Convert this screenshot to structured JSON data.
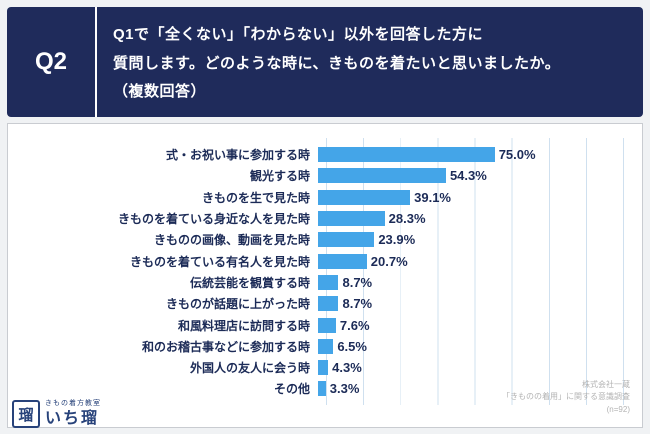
{
  "header": {
    "q_label": "Q2",
    "line1": "Q1で「全くない」「わからない」以外を回答した方に",
    "line2": "質問します。どのような時に、きものを着たいと思いましたか。",
    "line3": "（複数回答）"
  },
  "chart_data": {
    "type": "bar",
    "orientation": "horizontal",
    "title": "",
    "categories": [
      "式・お祝い事に参加する時",
      "観光する時",
      "きものを生で見た時",
      "きものを着ている身近な人を見た時",
      "きものの画像、動画を見た時",
      "きものを着ている有名人を見た時",
      "伝統芸能を観賞する時",
      "きものが話題に上がった時",
      "和風料理店に訪問する時",
      "和のお稽古事などに参加する時",
      "外国人の友人に会う時",
      "その他"
    ],
    "values": [
      75.0,
      54.3,
      39.1,
      28.3,
      23.9,
      20.7,
      8.7,
      8.7,
      7.6,
      6.5,
      4.3,
      3.3
    ],
    "value_labels": [
      "75.0%",
      "54.3%",
      "39.1%",
      "28.3%",
      "23.9%",
      "20.7%",
      "8.7%",
      "8.7%",
      "7.6%",
      "6.5%",
      "4.3%",
      "3.3%"
    ],
    "xlim": [
      0,
      100
    ],
    "grid": true,
    "legend": false,
    "bar_color": "#44a5e8",
    "value_label_color": "#1c2b57"
  },
  "footer": {
    "source_line1": "株式会社一蔵",
    "source_line2": "「きものの着用」に関する意識調査",
    "source_line3": "(n=92)"
  },
  "logo": {
    "icon_char": "瑠",
    "school": "きもの着方教室",
    "name": "いち瑠"
  },
  "colors": {
    "header_bg": "#1f2b5b",
    "bar": "#44a5e8",
    "text_navy": "#1c2b57",
    "gridline": "#cfe0ef"
  }
}
